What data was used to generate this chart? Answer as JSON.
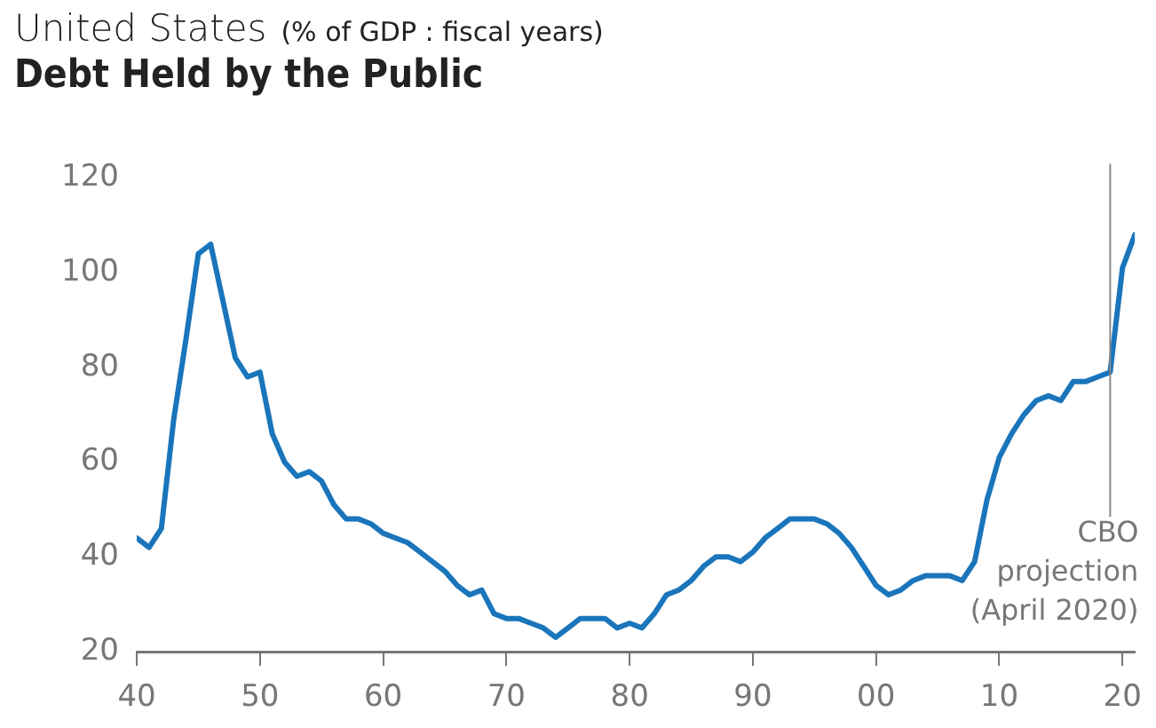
{
  "chart_data": {
    "type": "line",
    "subtitle": "United States",
    "ylabel": "(% of GDP : fiscal years)",
    "title": "Debt Held by the Public",
    "x": [
      1940,
      1941,
      1942,
      1943,
      1944,
      1945,
      1946,
      1947,
      1948,
      1949,
      1950,
      1951,
      1952,
      1953,
      1954,
      1955,
      1956,
      1957,
      1958,
      1959,
      1960,
      1961,
      1962,
      1963,
      1964,
      1965,
      1966,
      1967,
      1968,
      1969,
      1970,
      1971,
      1972,
      1973,
      1974,
      1975,
      1976,
      1977,
      1978,
      1979,
      1980,
      1981,
      1982,
      1983,
      1984,
      1985,
      1986,
      1987,
      1988,
      1989,
      1990,
      1991,
      1992,
      1993,
      1994,
      1995,
      1996,
      1997,
      1998,
      1999,
      2000,
      2001,
      2002,
      2003,
      2004,
      2005,
      2006,
      2007,
      2008,
      2009,
      2010,
      2011,
      2012,
      2013,
      2014,
      2015,
      2016,
      2017,
      2018,
      2019,
      2020,
      2021
    ],
    "series": [
      {
        "color": "#1a75bb",
        "values": [
          44,
          42,
          46,
          69,
          86,
          104,
          106,
          94,
          82,
          78,
          79,
          66,
          60,
          57,
          58,
          56,
          51,
          48,
          48,
          47,
          45,
          44,
          43,
          41,
          39,
          37,
          34,
          32,
          33,
          28,
          27,
          27,
          26,
          25,
          23,
          25,
          27,
          27,
          27,
          25,
          26,
          25,
          28,
          32,
          33,
          35,
          38,
          40,
          40,
          39,
          41,
          44,
          46,
          48,
          48,
          48,
          47,
          45,
          42,
          38,
          34,
          32,
          33,
          35,
          36,
          36,
          36,
          35,
          39,
          52,
          61,
          66,
          70,
          73,
          74,
          73,
          77,
          77,
          78,
          79,
          101,
          108
        ]
      }
    ],
    "xlim": [
      1940,
      2021
    ],
    "ylim": [
      20,
      120
    ],
    "xticks": [
      {
        "value": 1940,
        "label": "40"
      },
      {
        "value": 1950,
        "label": "50"
      },
      {
        "value": 1960,
        "label": "60"
      },
      {
        "value": 1970,
        "label": "70"
      },
      {
        "value": 1980,
        "label": "80"
      },
      {
        "value": 1990,
        "label": "90"
      },
      {
        "value": 2000,
        "label": "00"
      },
      {
        "value": 2010,
        "label": "10"
      },
      {
        "value": 2020,
        "label": "20"
      }
    ],
    "yticks": [
      20,
      40,
      60,
      80,
      100,
      120
    ],
    "ref_lines": [
      {
        "axis": "x",
        "value": 2019,
        "label": "CBO projection (April 2020)",
        "color": "#888888"
      }
    ],
    "grid": false,
    "legend": false,
    "marker": "none",
    "line_style": "solid"
  }
}
